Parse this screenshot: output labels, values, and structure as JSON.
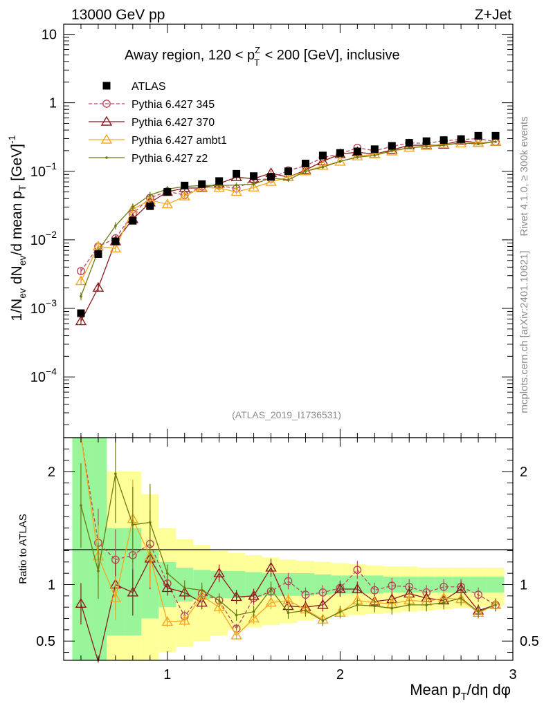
{
  "header": {
    "left": "13000 GeV pp",
    "right": "Z+Jet"
  },
  "side": {
    "rivet": "Rivet 4.1.0, ≥ 300k events",
    "mcplots": "mcplots.cern.ch [arXiv:2401.10621]"
  },
  "chart_data": {
    "type": "scatter",
    "title": "Away region, 120 < p_T^Z < 200 [GeV], inclusive",
    "title_parts": {
      "a": "Away region, 120 < p",
      "sup": "Z",
      "sub": "T",
      "b": " < 200 [GeV], inclusive"
    },
    "watermark": "(ATLAS_2019_I1736531)",
    "ylabel": "1/N_ev dN_ev/d mean p_T [GeV]^-1",
    "ylabel_parts": {
      "a": "1/N",
      "s1": "ev",
      "b": " dN",
      "s2": "ev",
      "c": "/d mean p",
      "s3": "T",
      "d": " [GeV]",
      "e": "-1"
    },
    "xlabel": "Mean p_T/dη dφ",
    "xlabel_parts": {
      "a": "Mean p",
      "sub": "T",
      "b": "/dη dφ"
    },
    "ratio_ylabel": "Ratio to ATLAS",
    "xlim": [
      0.4,
      3.0
    ],
    "ylim": [
      1.3e-05,
      14
    ],
    "yscale": "log",
    "ratio_ylim": [
      0.33,
      2.3
    ],
    "x_ticks": [
      1,
      2,
      3
    ],
    "x_tick_labels": [
      "1",
      "2",
      "3"
    ],
    "y_ticks": [
      0.0001,
      0.001,
      0.01,
      0.1,
      1,
      10
    ],
    "y_tick_labels": [
      {
        "base": "10",
        "exp": "−4"
      },
      {
        "base": "10",
        "exp": "−3"
      },
      {
        "base": "10",
        "exp": "−2"
      },
      {
        "base": "10",
        "exp": "−1"
      },
      {
        "base": "1",
        "exp": ""
      },
      {
        "base": "10",
        "exp": ""
      }
    ],
    "ratio_ticks": [
      0.5,
      1,
      2
    ],
    "ratio_tick_labels": [
      "0.5",
      "1",
      "2"
    ],
    "x": [
      0.5,
      0.6,
      0.7,
      0.8,
      0.9,
      1.0,
      1.1,
      1.2,
      1.3,
      1.4,
      1.5,
      1.6,
      1.7,
      1.8,
      1.9,
      2.0,
      2.1,
      2.2,
      2.3,
      2.4,
      2.5,
      2.6,
      2.7,
      2.8,
      2.9
    ],
    "band_edges": [
      0.45,
      0.55,
      0.65,
      0.75,
      0.85,
      0.95,
      1.05,
      1.15,
      1.25,
      1.35,
      1.45,
      1.55,
      1.65,
      1.75,
      1.85,
      1.95,
      2.05,
      2.15,
      2.25,
      2.35,
      2.45,
      2.55,
      2.65,
      2.75,
      2.85,
      2.95
    ],
    "band_inner": [
      2.3,
      2.3,
      1.5,
      1.5,
      1.3,
      1.2,
      1.15,
      1.13,
      1.12,
      1.12,
      1.11,
      1.1,
      1.1,
      1.1,
      1.09,
      1.08,
      1.08,
      1.08,
      1.07,
      1.07,
      1.07,
      1.07,
      1.07,
      1.07,
      1.07
    ],
    "band_inner_low": [
      0.33,
      0.33,
      0.55,
      0.55,
      0.7,
      0.8,
      0.85,
      0.87,
      0.88,
      0.88,
      0.89,
      0.9,
      0.9,
      0.9,
      0.91,
      0.92,
      0.92,
      0.92,
      0.93,
      0.93,
      0.93,
      0.93,
      0.93,
      0.93,
      0.93
    ],
    "band_outer": [
      2.3,
      2.3,
      2.0,
      2.0,
      1.8,
      1.5,
      1.4,
      1.35,
      1.3,
      1.28,
      1.26,
      1.24,
      1.22,
      1.21,
      1.2,
      1.19,
      1.18,
      1.17,
      1.16,
      1.16,
      1.15,
      1.15,
      1.15,
      1.15,
      1.15
    ],
    "band_outer_low": [
      0.33,
      0.33,
      0.33,
      0.33,
      0.33,
      0.4,
      0.45,
      0.5,
      0.55,
      0.6,
      0.62,
      0.64,
      0.66,
      0.68,
      0.7,
      0.72,
      0.73,
      0.74,
      0.75,
      0.76,
      0.77,
      0.78,
      0.79,
      0.8,
      0.81
    ],
    "series": [
      {
        "name": "ATLAS",
        "color": "#000000",
        "marker": "square",
        "values": [
          0.00085,
          0.0062,
          0.0095,
          0.019,
          0.031,
          0.05,
          0.062,
          0.065,
          0.072,
          0.092,
          0.085,
          0.083,
          0.1,
          0.13,
          0.17,
          0.185,
          0.195,
          0.21,
          0.235,
          0.26,
          0.275,
          0.285,
          0.295,
          0.33,
          0.33
        ]
      },
      {
        "name": "Pythia 6.427 345",
        "color": "#b5495b",
        "marker": "circle-open",
        "dash": "5,3",
        "values": [
          0.0035,
          0.008,
          0.0105,
          0.024,
          0.041,
          0.051,
          0.045,
          0.06,
          0.062,
          0.056,
          0.075,
          0.078,
          0.103,
          0.12,
          0.158,
          0.18,
          0.22,
          0.2,
          0.23,
          0.26,
          0.255,
          0.28,
          0.29,
          0.3,
          0.27
        ],
        "ratio": [
          4.1,
          1.37,
          1.22,
          1.26,
          1.36,
          1.01,
          0.72,
          0.92,
          0.86,
          0.61,
          0.88,
          0.94,
          1.03,
          0.91,
          0.93,
          0.97,
          1.13,
          0.95,
          0.99,
          0.98,
          0.93,
          0.98,
          0.98,
          0.91,
          0.82
        ]
      },
      {
        "name": "Pythia 6.427 370",
        "color": "#8b1a1a",
        "marker": "triangle-open",
        "values": [
          0.00065,
          0.002,
          0.0095,
          0.02,
          0.035,
          0.05,
          0.057,
          0.057,
          0.066,
          0.082,
          0.078,
          0.094,
          0.082,
          0.104,
          0.14,
          0.178,
          0.19,
          0.178,
          0.205,
          0.24,
          0.24,
          0.245,
          0.28,
          0.26,
          0.27
        ],
        "ratio": [
          0.83,
          0.3,
          1.0,
          0.93,
          1.23,
          0.97,
          0.93,
          0.84,
          1.1,
          0.89,
          0.9,
          1.15,
          0.81,
          0.8,
          0.82,
          0.96,
          0.96,
          0.85,
          0.87,
          0.92,
          0.88,
          0.86,
          0.96,
          0.77,
          0.82
        ]
      },
      {
        "name": "Pythia 6.427 ambt1",
        "color": "#f5a623",
        "marker": "triangle-open",
        "values": [
          0.0025,
          0.008,
          0.0075,
          0.028,
          0.038,
          0.033,
          0.043,
          0.058,
          0.057,
          0.05,
          0.058,
          0.07,
          0.082,
          0.1,
          0.12,
          0.138,
          0.165,
          0.178,
          0.195,
          0.22,
          0.235,
          0.25,
          0.255,
          0.26,
          0.27
        ],
        "ratio": [
          3.0,
          1.25,
          0.88,
          1.58,
          1.25,
          0.67,
          0.68,
          0.9,
          0.8,
          0.55,
          0.7,
          0.84,
          0.86,
          0.78,
          0.69,
          0.75,
          0.86,
          0.84,
          0.83,
          0.86,
          0.85,
          0.88,
          0.87,
          0.75,
          0.82
        ]
      },
      {
        "name": "Pythia 6.427 z2",
        "color": "#6b7a0f",
        "marker": "dot",
        "values": [
          0.0015,
          0.007,
          0.016,
          0.03,
          0.045,
          0.055,
          0.06,
          0.062,
          0.062,
          0.063,
          0.065,
          0.08,
          0.075,
          0.1,
          0.115,
          0.14,
          0.16,
          0.17,
          0.2,
          0.22,
          0.23,
          0.24,
          0.26,
          0.25,
          0.27
        ],
        "ratio": [
          1.7,
          1.12,
          1.98,
          1.53,
          1.55,
          1.1,
          0.97,
          0.95,
          0.86,
          0.73,
          0.76,
          0.96,
          0.75,
          0.77,
          0.68,
          0.76,
          0.82,
          0.81,
          0.79,
          0.82,
          0.82,
          0.84,
          0.88,
          0.76,
          0.82
        ]
      }
    ]
  }
}
